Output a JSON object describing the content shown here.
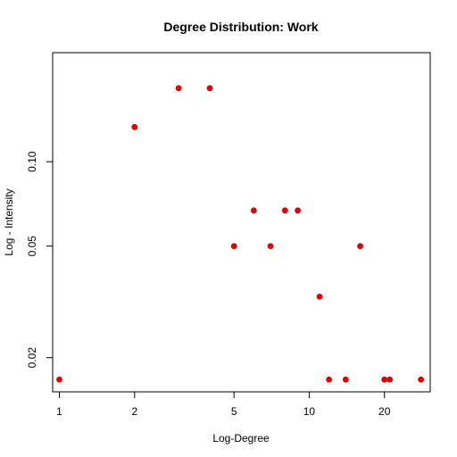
{
  "chart_data": {
    "type": "scatter",
    "title": "Degree Distribution: Work",
    "xlabel": "Log-Degree",
    "ylabel": "Log - Intensity",
    "log_x": true,
    "log_y": true,
    "xlim": [
      0.94,
      30.5
    ],
    "ylim": [
      0.0151,
      0.245
    ],
    "xticks": [
      {
        "value": 1,
        "label": "1"
      },
      {
        "value": 2,
        "label": "2"
      },
      {
        "value": 5,
        "label": "5"
      },
      {
        "value": 10,
        "label": "10"
      },
      {
        "value": 20,
        "label": "20"
      }
    ],
    "yticks": [
      {
        "value": 0.02,
        "label": "0.02"
      },
      {
        "value": 0.05,
        "label": "0.05"
      },
      {
        "value": 0.1,
        "label": "0.10"
      }
    ],
    "grid": false,
    "point_color": "#e00000",
    "points": [
      {
        "x": 1,
        "y": 0.0167
      },
      {
        "x": 2,
        "y": 0.133
      },
      {
        "x": 3,
        "y": 0.183
      },
      {
        "x": 4,
        "y": 0.183
      },
      {
        "x": 5,
        "y": 0.05
      },
      {
        "x": 6,
        "y": 0.067
      },
      {
        "x": 7,
        "y": 0.05
      },
      {
        "x": 8,
        "y": 0.067
      },
      {
        "x": 9,
        "y": 0.067
      },
      {
        "x": 11,
        "y": 0.033
      },
      {
        "x": 12,
        "y": 0.0167
      },
      {
        "x": 14,
        "y": 0.0167
      },
      {
        "x": 16,
        "y": 0.05
      },
      {
        "x": 20,
        "y": 0.0167
      },
      {
        "x": 21,
        "y": 0.0167
      },
      {
        "x": 28,
        "y": 0.0167
      }
    ]
  }
}
